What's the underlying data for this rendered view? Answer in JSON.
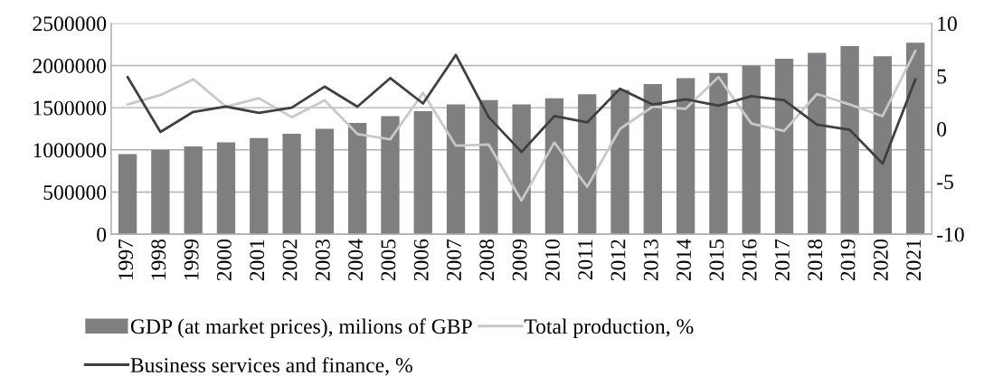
{
  "chart_data": {
    "type": "bar",
    "categories": [
      "1997",
      "1998",
      "1999",
      "2000",
      "2001",
      "2002",
      "2003",
      "2004",
      "2005",
      "2006",
      "2007",
      "2008",
      "2009",
      "2010",
      "2011",
      "2012",
      "2013",
      "2014",
      "2015",
      "2016",
      "2017",
      "2018",
      "2019",
      "2020",
      "2021"
    ],
    "series": [
      {
        "name": "GDP (at market prices), milions of GBP",
        "color": "#7f7f82",
        "values": [
          950000,
          1000000,
          1040000,
          1090000,
          1140000,
          1190000,
          1250000,
          1320000,
          1400000,
          1460000,
          1540000,
          1590000,
          1540000,
          1610000,
          1660000,
          1710000,
          1780000,
          1850000,
          1910000,
          2000000,
          2080000,
          2150000,
          2230000,
          2110000,
          2270000
        ]
      },
      {
        "name": "Total production, %",
        "type": "line",
        "axis": "y2",
        "color": "#c8c8c8",
        "values": [
          2.3,
          3.2,
          4.7,
          2.1,
          2.9,
          1.1,
          2.7,
          -0.5,
          -1.0,
          3.4,
          -1.6,
          -1.5,
          -6.8,
          -1.3,
          -5.5,
          0.0,
          2.1,
          1.9,
          4.9,
          0.5,
          -0.2,
          3.3,
          2.3,
          1.2,
          7.4
        ]
      },
      {
        "name": "Business services and finance, %",
        "type": "line",
        "axis": "y2",
        "color": "#404040",
        "values": [
          4.9,
          -0.3,
          1.6,
          2.1,
          1.5,
          2.0,
          4.0,
          2.1,
          4.8,
          2.4,
          7.0,
          1.1,
          -2.2,
          1.2,
          0.6,
          3.8,
          2.3,
          2.8,
          2.2,
          3.1,
          2.7,
          0.4,
          -0.1,
          -3.3,
          4.7
        ]
      }
    ],
    "ylim": [
      0,
      2500000
    ],
    "yticks": [
      0,
      500000,
      1000000,
      1500000,
      2000000,
      2500000
    ],
    "y2lim": [
      -10,
      10
    ],
    "y2ticks": [
      -10,
      -5,
      0,
      5,
      10
    ],
    "grid": "y",
    "legend": "bottom",
    "line_style": "solid",
    "marker": "none"
  }
}
